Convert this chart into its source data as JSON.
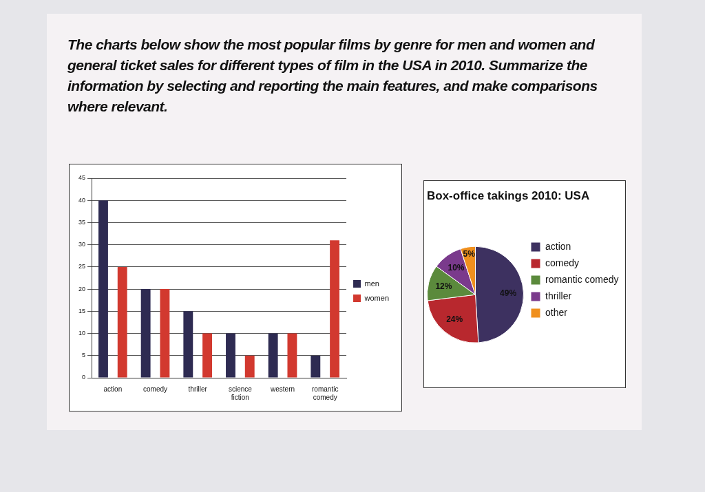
{
  "chart_data": [
    {
      "type": "bar",
      "title": "The charts below show the most popular films by genre for men and women and general ticket sales for different types of film in the USA in 2010. Summarize the information by selecting and reporting the main features, and make comparisons where relevant.",
      "categories": [
        "action",
        "comedy",
        "thriller",
        "science fiction",
        "western",
        "romantic comedy"
      ],
      "series": [
        {
          "name": "men",
          "color": "#2e2b52",
          "values": [
            40,
            20,
            15,
            10,
            10,
            5
          ]
        },
        {
          "name": "women",
          "color": "#d2392f",
          "values": [
            25,
            20,
            10,
            5,
            10,
            31
          ]
        }
      ],
      "ylim": [
        0,
        45
      ],
      "yticks": [
        0,
        5,
        10,
        15,
        20,
        25,
        30,
        35,
        40,
        45
      ],
      "grid": "y",
      "legend": "right"
    },
    {
      "type": "pie",
      "title": "Box-office takings 2010: USA",
      "categories": [
        "action",
        "comedy",
        "romantic comedy",
        "thriller",
        "other"
      ],
      "values": [
        49,
        24,
        12,
        10,
        5
      ],
      "colors": [
        "#3d3160",
        "#b8282e",
        "#5b8a3c",
        "#7a3a8c",
        "#f0901e"
      ],
      "value_labels": [
        "49%",
        "24%",
        "12%",
        "10%",
        "5%"
      ],
      "legend": "right"
    }
  ]
}
